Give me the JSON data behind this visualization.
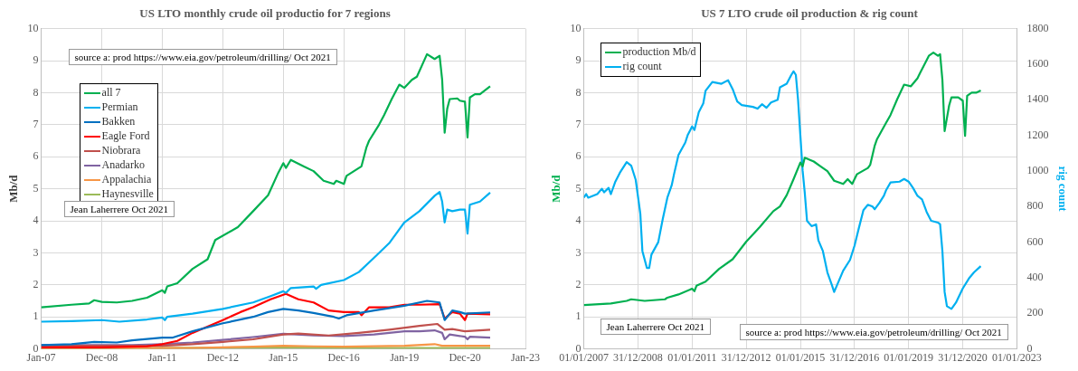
{
  "chart_data": [
    {
      "type": "line",
      "title": "US LTO monthly crude oil productio for 7 regions",
      "ylabel": "Mb/d",
      "annotations": [
        "source a: prod https://www.eia.gov/petroleum/drilling/ Oct 2021",
        "Jean Laherrere Oct 2021"
      ],
      "xlim": [
        "2007-01-01",
        "2023-01-01"
      ],
      "xticks": [
        {
          "value": "2007-01-01",
          "label": "Jan-07"
        },
        {
          "value": "2008-12-31",
          "label": "Dec-08"
        },
        {
          "value": "2011-01-01",
          "label": "Jan-11"
        },
        {
          "value": "2012-12-31",
          "label": "Dec-12"
        },
        {
          "value": "2015-01-01",
          "label": "Jan-15"
        },
        {
          "value": "2016-12-31",
          "label": "Dec-16"
        },
        {
          "value": "2019-01-01",
          "label": "Jan-19"
        },
        {
          "value": "2020-12-31",
          "label": "Dec-20"
        },
        {
          "value": "2023-01-01",
          "label": "Jan-23"
        }
      ],
      "ylim": [
        0,
        10
      ],
      "yticks": [
        0,
        1,
        2,
        3,
        4,
        5,
        6,
        7,
        8,
        9,
        10
      ],
      "grid": true,
      "legend": "top left",
      "series": [
        {
          "name": "all 7",
          "color": "#00b050",
          "x": [
            "2007-01",
            "2008-01",
            "2008-08",
            "2008-10",
            "2009-01",
            "2009-07",
            "2010-01",
            "2010-07",
            "2011-01",
            "2011-02",
            "2011-03",
            "2011-07",
            "2012-01",
            "2012-07",
            "2012-10",
            "2013-07",
            "2014-01",
            "2014-07",
            "2014-11",
            "2015-01",
            "2015-02",
            "2015-04",
            "2015-09",
            "2016-01",
            "2016-05",
            "2016-09",
            "2016-10",
            "2017-01",
            "2017-02",
            "2017-07",
            "2017-08",
            "2017-10",
            "2017-11",
            "2018-03",
            "2018-05",
            "2018-08",
            "2018-11",
            "2019-01",
            "2019-04",
            "2019-06",
            "2019-10",
            "2020-01",
            "2020-03",
            "2020-04",
            "2020-05",
            "2020-06",
            "2020-07",
            "2020-10",
            "2020-11",
            "2021-01",
            "2021-02",
            "2021-03",
            "2021-05",
            "2021-07",
            "2021-11"
          ],
          "values": [
            1.3,
            1.38,
            1.42,
            1.52,
            1.47,
            1.45,
            1.5,
            1.6,
            1.83,
            1.75,
            1.95,
            2.05,
            2.5,
            2.8,
            3.4,
            3.8,
            4.3,
            4.8,
            5.5,
            5.8,
            5.65,
            5.9,
            5.7,
            5.55,
            5.25,
            5.15,
            5.25,
            5.15,
            5.4,
            5.65,
            5.7,
            6.3,
            6.5,
            7.0,
            7.3,
            7.8,
            8.25,
            8.15,
            8.4,
            8.5,
            9.2,
            9.05,
            9.15,
            8.4,
            6.75,
            7.5,
            7.8,
            7.82,
            7.75,
            7.72,
            6.6,
            7.85,
            7.95,
            7.95,
            8.2
          ]
        },
        {
          "name": "Permian",
          "color": "#00b0f0",
          "x": [
            "2007-01",
            "2008-01",
            "2009-01",
            "2009-08",
            "2010-07",
            "2011-01",
            "2011-02",
            "2011-03",
            "2012-01",
            "2013-01",
            "2014-01",
            "2014-08",
            "2015-01",
            "2015-02",
            "2015-04",
            "2016-01",
            "2016-02",
            "2016-04",
            "2017-01",
            "2017-07",
            "2018-01",
            "2018-07",
            "2019-01",
            "2019-07",
            "2020-01",
            "2020-03",
            "2020-04",
            "2020-05",
            "2020-06",
            "2020-08",
            "2020-11",
            "2021-01",
            "2021-02",
            "2021-03",
            "2021-07",
            "2021-11"
          ],
          "values": [
            0.85,
            0.87,
            0.9,
            0.85,
            0.92,
            0.98,
            0.9,
            1.0,
            1.1,
            1.25,
            1.45,
            1.65,
            1.8,
            1.75,
            1.9,
            1.95,
            1.88,
            2.0,
            2.15,
            2.4,
            2.85,
            3.3,
            3.95,
            4.3,
            4.78,
            4.9,
            4.6,
            3.95,
            4.35,
            4.3,
            4.35,
            4.35,
            3.6,
            4.5,
            4.6,
            4.88
          ]
        },
        {
          "name": "Bakken",
          "color": "#0070c0",
          "x": [
            "2007-01",
            "2008-01",
            "2008-10",
            "2009-07",
            "2010-01",
            "2011-01",
            "2011-05",
            "2012-01",
            "2013-01",
            "2014-01",
            "2014-07",
            "2015-01",
            "2015-07",
            "2016-01",
            "2016-09",
            "2016-11",
            "2017-02",
            "2018-01",
            "2019-01",
            "2019-10",
            "2020-03",
            "2020-05",
            "2020-08",
            "2020-11",
            "2021-01",
            "2021-11"
          ],
          "values": [
            0.12,
            0.15,
            0.22,
            0.2,
            0.27,
            0.35,
            0.35,
            0.55,
            0.8,
            1.0,
            1.15,
            1.25,
            1.2,
            1.12,
            1.0,
            0.95,
            1.05,
            1.2,
            1.35,
            1.5,
            1.45,
            0.9,
            1.2,
            1.15,
            1.1,
            1.14
          ]
        },
        {
          "name": "Eagle Ford",
          "color": "#ff0000",
          "x": [
            "2007-01",
            "2009-01",
            "2010-07",
            "2011-01",
            "2011-07",
            "2012-01",
            "2013-01",
            "2013-08",
            "2014-01",
            "2014-08",
            "2015-02",
            "2015-07",
            "2016-01",
            "2016-07",
            "2017-01",
            "2017-07",
            "2017-08",
            "2017-11",
            "2018-07",
            "2019-01",
            "2019-07",
            "2020-03",
            "2020-05",
            "2020-08",
            "2020-11",
            "2021-01",
            "2021-02",
            "2021-11"
          ],
          "values": [
            0.05,
            0.05,
            0.08,
            0.15,
            0.25,
            0.5,
            0.9,
            1.15,
            1.3,
            1.55,
            1.72,
            1.55,
            1.45,
            1.2,
            1.15,
            1.15,
            1.05,
            1.3,
            1.3,
            1.38,
            1.38,
            1.4,
            0.95,
            1.15,
            1.1,
            0.9,
            1.1,
            1.08
          ]
        },
        {
          "name": "Niobrara",
          "color": "#c0504d",
          "x": [
            "2007-01",
            "2011-01",
            "2012-01",
            "2013-01",
            "2014-01",
            "2015-01",
            "2015-07",
            "2016-07",
            "2017-07",
            "2018-07",
            "2019-07",
            "2020-02",
            "2020-05",
            "2020-08",
            "2021-01",
            "2021-11"
          ],
          "values": [
            0.1,
            0.1,
            0.15,
            0.22,
            0.3,
            0.45,
            0.48,
            0.42,
            0.5,
            0.6,
            0.72,
            0.78,
            0.6,
            0.62,
            0.55,
            0.6
          ]
        },
        {
          "name": "Anadarko",
          "color": "#8064a2",
          "x": [
            "2007-01",
            "2010-01",
            "2011-01",
            "2012-01",
            "2013-01",
            "2014-01",
            "2015-01",
            "2016-01",
            "2017-01",
            "2018-01",
            "2019-01",
            "2019-07",
            "2020-01",
            "2020-04",
            "2020-05",
            "2020-07",
            "2021-01",
            "2021-02",
            "2021-03",
            "2021-11"
          ],
          "values": [
            0.12,
            0.12,
            0.15,
            0.2,
            0.28,
            0.37,
            0.47,
            0.42,
            0.4,
            0.45,
            0.55,
            0.55,
            0.58,
            0.5,
            0.3,
            0.45,
            0.38,
            0.3,
            0.38,
            0.35
          ]
        },
        {
          "name": "Appalachia",
          "color": "#f79646",
          "x": [
            "2007-01",
            "2012-01",
            "2014-01",
            "2015-01",
            "2016-01",
            "2017-01",
            "2019-01",
            "2020-01",
            "2020-04",
            "2021-11"
          ],
          "values": [
            0.02,
            0.03,
            0.07,
            0.1,
            0.08,
            0.07,
            0.1,
            0.15,
            0.1,
            0.1
          ]
        },
        {
          "name": "Haynesville",
          "color": "#9bbb59",
          "x": [
            "2007-01",
            "2010-01",
            "2015-01",
            "2018-01",
            "2021-11"
          ],
          "values": [
            0.02,
            0.03,
            0.04,
            0.03,
            0.03
          ]
        }
      ]
    },
    {
      "type": "line",
      "title": "US 7 LTO crude oil production & rig count",
      "ylabel": "Mb/d",
      "y2label": "rig count",
      "annotations": [
        "Jean Laherrere Oct 2021",
        "source a: prod https://www.eia.gov/petroleum/drilling/ Oct 2021"
      ],
      "xlim": [
        "2007-01-01",
        "2023-01-01"
      ],
      "xticks": [
        {
          "value": "2007-01-01",
          "label": "01/01/2007"
        },
        {
          "value": "2008-12-31",
          "label": "31/12/2008"
        },
        {
          "value": "2011-01-01",
          "label": "01/01/2011"
        },
        {
          "value": "2012-12-31",
          "label": "31/12/2012"
        },
        {
          "value": "2015-01-01",
          "label": "01/01/2015"
        },
        {
          "value": "2016-12-31",
          "label": "31/12/2016"
        },
        {
          "value": "2019-01-01",
          "label": "01/01/2019"
        },
        {
          "value": "2020-12-31",
          "label": "31/12/2020"
        },
        {
          "value": "2023-01-01",
          "label": "01/01/2023"
        }
      ],
      "ylim": [
        0,
        10
      ],
      "yticks": [
        0,
        1,
        2,
        3,
        4,
        5,
        6,
        7,
        8,
        9,
        10
      ],
      "y2lim": [
        0,
        1800
      ],
      "y2ticks": [
        0,
        200,
        400,
        600,
        800,
        1000,
        1200,
        1400,
        1600,
        1800
      ],
      "grid": true,
      "legend": "top left",
      "series": [
        {
          "name": "production  Mb/d",
          "color": "#00b050",
          "x": [
            "2007-01",
            "2008-01",
            "2008-08",
            "2008-10",
            "2009-04",
            "2010-01",
            "2010-02",
            "2010-07",
            "2011-01",
            "2011-02",
            "2011-03",
            "2011-07",
            "2012-01",
            "2012-07",
            "2013-01",
            "2013-07",
            "2014-01",
            "2014-04",
            "2014-07",
            "2014-10",
            "2015-01",
            "2015-02",
            "2015-03",
            "2015-07",
            "2015-10",
            "2016-01",
            "2016-04",
            "2016-08",
            "2016-10",
            "2016-12",
            "2017-02",
            "2017-07",
            "2017-08",
            "2017-10",
            "2017-11",
            "2018-03",
            "2018-05",
            "2018-08",
            "2018-11",
            "2019-02",
            "2019-05",
            "2019-06",
            "2019-10",
            "2019-12",
            "2020-02",
            "2020-03",
            "2020-04",
            "2020-05",
            "2020-07",
            "2020-08",
            "2020-11",
            "2021-01",
            "2021-02",
            "2021-03",
            "2021-05",
            "2021-07",
            "2021-09"
          ],
          "values": [
            1.37,
            1.42,
            1.5,
            1.55,
            1.5,
            1.55,
            1.6,
            1.7,
            1.88,
            1.8,
            1.97,
            2.1,
            2.5,
            2.8,
            3.35,
            3.8,
            4.3,
            4.45,
            4.8,
            5.3,
            5.82,
            5.7,
            5.97,
            5.85,
            5.7,
            5.55,
            5.25,
            5.15,
            5.3,
            5.15,
            5.45,
            5.65,
            5.75,
            6.35,
            6.55,
            7.05,
            7.3,
            7.8,
            8.25,
            8.2,
            8.45,
            8.6,
            9.15,
            9.25,
            9.15,
            9.2,
            8.4,
            6.8,
            7.6,
            7.85,
            7.85,
            7.75,
            6.65,
            7.9,
            8.0,
            8.0,
            8.07
          ]
        },
        {
          "name": "rig count",
          "color": "#00b0f0",
          "axis": "y2",
          "x": [
            "2007-01",
            "2007-02",
            "2007-03",
            "2007-07",
            "2007-09",
            "2007-10",
            "2007-12",
            "2008-01",
            "2008-03",
            "2008-05",
            "2008-08",
            "2008-10",
            "2008-12",
            "2009-02",
            "2009-03",
            "2009-05",
            "2009-06",
            "2009-07",
            "2009-10",
            "2009-12",
            "2010-02",
            "2010-04",
            "2010-05",
            "2010-07",
            "2010-10",
            "2010-11",
            "2011-01",
            "2011-02",
            "2011-04",
            "2011-06",
            "2011-07",
            "2011-10",
            "2012-02",
            "2012-05",
            "2012-07",
            "2012-09",
            "2012-11",
            "2013-04",
            "2013-06",
            "2013-08",
            "2013-10",
            "2013-12",
            "2014-03",
            "2014-04",
            "2014-07",
            "2014-09",
            "2014-10",
            "2014-11",
            "2014-12",
            "2015-01",
            "2015-02",
            "2015-03",
            "2015-04",
            "2015-06",
            "2015-08",
            "2015-09",
            "2015-11",
            "2016-01",
            "2016-03",
            "2016-04",
            "2016-06",
            "2016-08",
            "2016-11",
            "2017-01",
            "2017-03",
            "2017-05",
            "2017-07",
            "2017-09",
            "2017-10",
            "2017-12",
            "2018-02",
            "2018-03",
            "2018-05",
            "2018-09",
            "2018-11",
            "2019-01",
            "2019-03",
            "2019-05",
            "2019-07",
            "2019-09",
            "2019-11",
            "2020-02",
            "2020-03",
            "2020-04",
            "2020-05",
            "2020-06",
            "2020-08",
            "2020-10",
            "2021-01",
            "2021-04",
            "2021-06",
            "2021-09"
          ],
          "values": [
            850,
            870,
            850,
            870,
            900,
            880,
            905,
            870,
            940,
            990,
            1050,
            1030,
            950,
            760,
            550,
            455,
            455,
            530,
            600,
            730,
            850,
            920,
            980,
            1090,
            1160,
            1200,
            1250,
            1230,
            1330,
            1380,
            1450,
            1500,
            1490,
            1510,
            1460,
            1390,
            1370,
            1360,
            1350,
            1375,
            1355,
            1385,
            1400,
            1470,
            1490,
            1540,
            1560,
            1540,
            1400,
            1200,
            1000,
            880,
            720,
            690,
            700,
            610,
            550,
            430,
            360,
            320,
            380,
            440,
            500,
            580,
            680,
            780,
            810,
            800,
            785,
            820,
            860,
            890,
            935,
            940,
            955,
            940,
            905,
            860,
            840,
            770,
            720,
            710,
            700,
            550,
            320,
            240,
            225,
            260,
            340,
            400,
            430,
            465
          ]
        }
      ]
    }
  ]
}
